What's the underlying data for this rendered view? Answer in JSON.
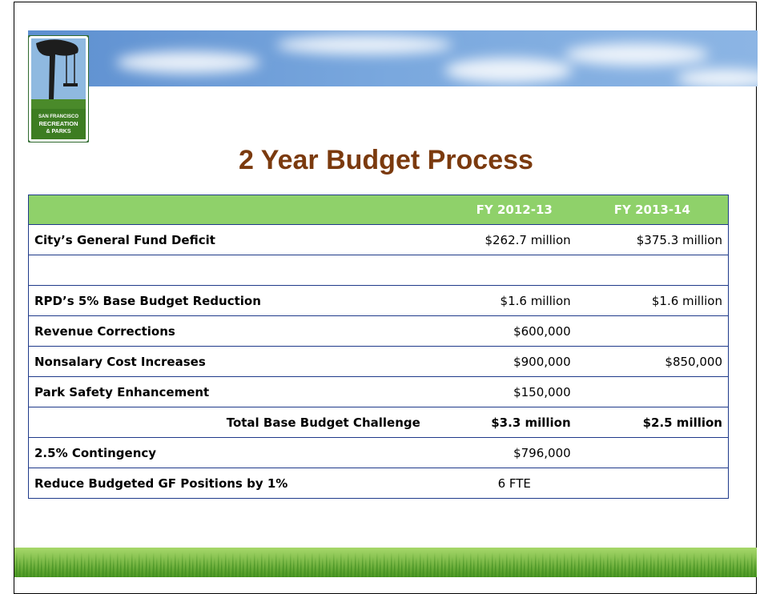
{
  "logo": {
    "lines": [
      "SAN FRANCISCO",
      "RECREATION",
      "& PARKS"
    ]
  },
  "header": {
    "title": "2 Year Budget Process"
  },
  "table": {
    "columns": [
      null,
      "FY 2012-13",
      "FY 2013-14"
    ],
    "rows": [
      [
        "City’s General Fund Deficit",
        "$262.7 million",
        "$375.3 million"
      ],
      [
        null,
        null,
        null
      ],
      [
        "RPD’s 5% Base Budget Reduction",
        "$1.6 million",
        "$1.6 million"
      ],
      [
        "Revenue Corrections",
        "$600,000",
        null
      ],
      [
        "Nonsalary Cost Increases",
        "$900,000",
        "$850,000"
      ],
      [
        "Park Safety Enhancement",
        "$150,000",
        null
      ],
      [
        "Total Base Budget Challenge",
        "$3.3 million",
        "$2.5 million"
      ],
      [
        "2.5% Contingency",
        "$796,000",
        null
      ],
      [
        "Reduce Budgeted GF Positions by 1%",
        "6 FTE",
        null
      ]
    ]
  }
}
